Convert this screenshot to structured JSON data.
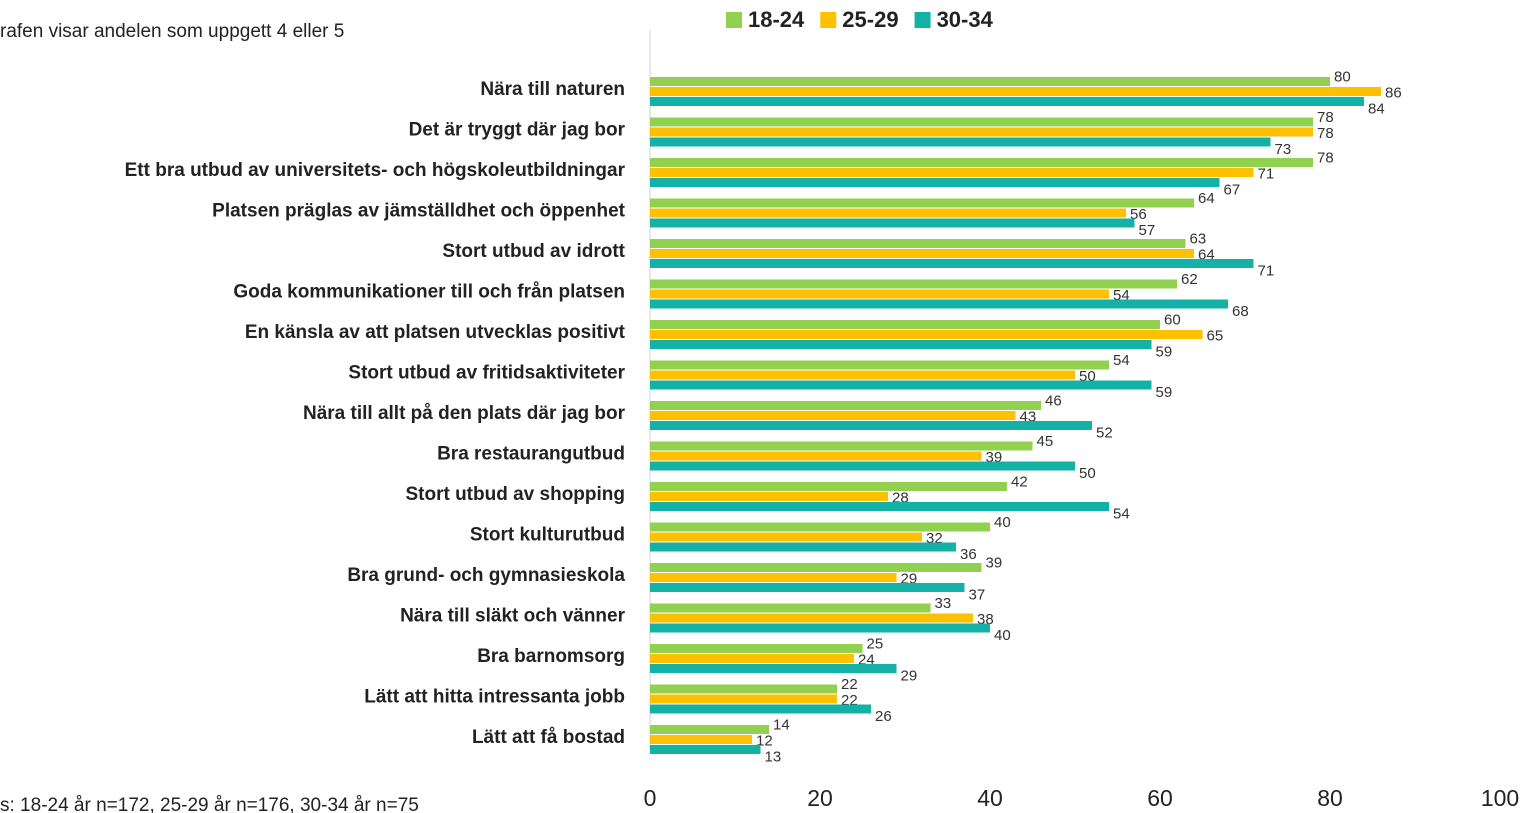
{
  "chart_data": {
    "type": "bar",
    "orientation": "horizontal",
    "subtitle": "rafen visar andelen som uppgett 4 eller 5",
    "note": "s: 18-24 år n=172, 25-29 år n=176, 30-34 år n=75",
    "categories": [
      "Nära till naturen",
      "Det är tryggt där jag bor",
      "Ett bra utbud av universitets- och högskoleutbildningar",
      "Platsen präglas av jämställdhet och öppenhet",
      "Stort utbud av idrott",
      "Goda kommunikationer till och från platsen",
      "En känsla av att platsen utvecklas positivt",
      "Stort utbud av fritidsaktiviteter",
      "Nära till allt på den plats där jag bor",
      "Bra restaurangutbud",
      "Stort utbud av shopping",
      "Stort kulturutbud",
      "Bra grund- och gymnasieskola",
      "Nära till släkt och vänner",
      "Bra barnomsorg",
      "Lätt att hitta intressanta jobb",
      "Lätt att få bostad"
    ],
    "series": [
      {
        "name": "18-24",
        "color": "#92d050",
        "values": [
          80,
          78,
          78,
          64,
          63,
          62,
          60,
          54,
          46,
          45,
          42,
          40,
          39,
          33,
          25,
          22,
          14
        ]
      },
      {
        "name": "25-29",
        "color": "#ffc000",
        "values": [
          86,
          78,
          71,
          56,
          64,
          54,
          65,
          50,
          43,
          39,
          28,
          32,
          29,
          38,
          24,
          22,
          12
        ]
      },
      {
        "name": "30-34",
        "color": "#14b1a6",
        "values": [
          84,
          73,
          67,
          57,
          71,
          68,
          59,
          59,
          52,
          50,
          54,
          36,
          37,
          40,
          29,
          26,
          13
        ]
      }
    ],
    "xlim": [
      0,
      100
    ],
    "xticks": [
      0,
      20,
      40,
      60,
      80,
      100
    ],
    "grid": false,
    "legend": "top"
  }
}
